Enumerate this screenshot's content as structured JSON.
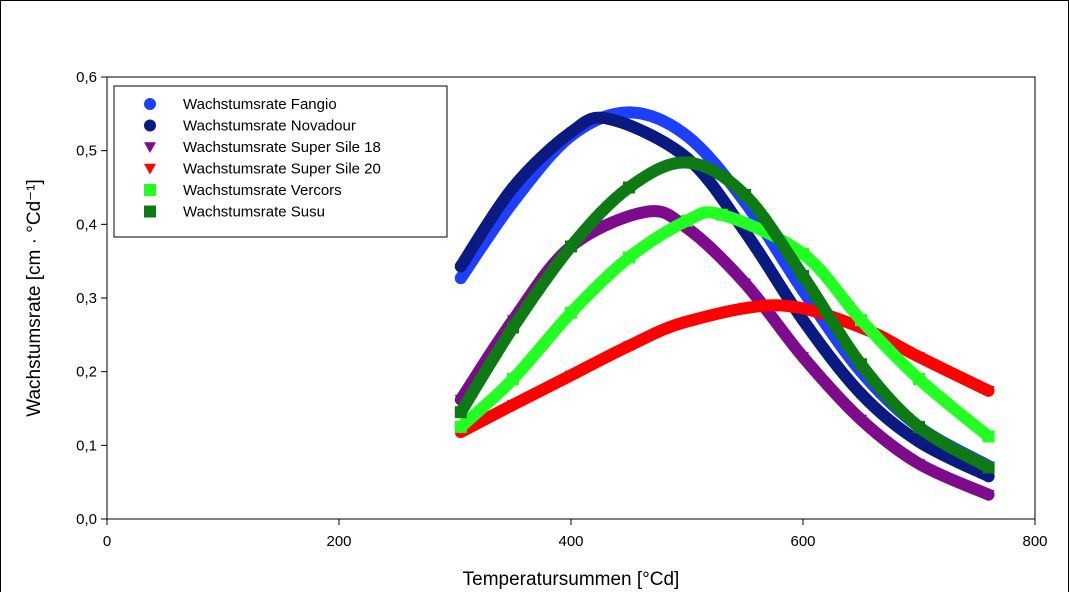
{
  "chart_data": {
    "type": "scatter",
    "xlabel": "Temperatursummen [°Cd]",
    "ylabel": "Wachstumsrate [cm · °Cd⁻¹]",
    "xlim": [
      0,
      800
    ],
    "ylim": [
      0.0,
      0.6
    ],
    "xticks": [
      "0",
      "200",
      "400",
      "600",
      "800"
    ],
    "yticks": [
      "0,0",
      "0,1",
      "0,2",
      "0,3",
      "0,4",
      "0,5",
      "0,6"
    ],
    "legend_position": "top-left",
    "grid": false,
    "series": [
      {
        "name": "Wachstumsrate Fangio",
        "marker": "circle",
        "color": "#1f3fff",
        "x": [
          305,
          350,
          400,
          450,
          500,
          550,
          600,
          650,
          700,
          760
        ],
        "y": [
          0.327,
          0.43,
          0.52,
          0.552,
          0.52,
          0.43,
          0.31,
          0.2,
          0.125,
          0.072
        ]
      },
      {
        "name": "Wachstumsrate Novadour",
        "marker": "circle",
        "color": "#0a1a80",
        "x": [
          305,
          350,
          400,
          433,
          500,
          550,
          600,
          650,
          700,
          760
        ],
        "y": [
          0.343,
          0.45,
          0.525,
          0.543,
          0.49,
          0.39,
          0.27,
          0.17,
          0.105,
          0.058
        ]
      },
      {
        "name": "Wachstumsrate Super Sile 18",
        "marker": "triangle-down",
        "color": "#7e0a8c",
        "x": [
          305,
          350,
          400,
          465,
          500,
          550,
          600,
          650,
          700,
          760
        ],
        "y": [
          0.162,
          0.27,
          0.37,
          0.417,
          0.395,
          0.32,
          0.22,
          0.135,
          0.075,
          0.033
        ]
      },
      {
        "name": "Wachstumsrate Super Sile 20",
        "marker": "triangle-down",
        "color": "#ff0000",
        "x": [
          305,
          350,
          400,
          450,
          500,
          580,
          650,
          700,
          760
        ],
        "y": [
          0.118,
          0.155,
          0.195,
          0.235,
          0.268,
          0.29,
          0.26,
          0.22,
          0.174
        ]
      },
      {
        "name": "Wachstumsrate  Vercors",
        "marker": "square",
        "color": "#22ff22",
        "x": [
          305,
          350,
          400,
          450,
          500,
          530,
          600,
          650,
          700,
          760
        ],
        "y": [
          0.125,
          0.19,
          0.28,
          0.355,
          0.405,
          0.413,
          0.36,
          0.27,
          0.19,
          0.112
        ]
      },
      {
        "name": "Wachstumsrate Susu",
        "marker": "square",
        "color": "#0d7a14",
        "x": [
          305,
          350,
          400,
          450,
          500,
          550,
          600,
          650,
          700,
          760
        ],
        "y": [
          0.145,
          0.26,
          0.37,
          0.45,
          0.484,
          0.44,
          0.33,
          0.21,
          0.125,
          0.07
        ]
      }
    ]
  }
}
